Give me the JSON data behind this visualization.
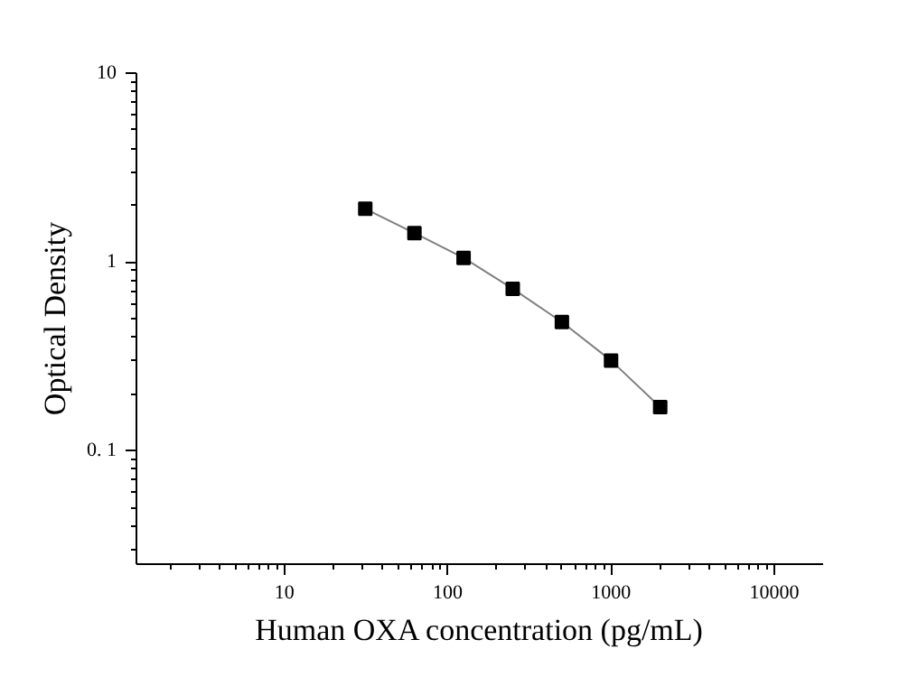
{
  "chart_data": {
    "type": "line",
    "xlabel": "Human OXA concentration (pg/mL)",
    "ylabel": "Optical Density",
    "x": [
      31.25,
      62.5,
      125,
      250,
      500,
      1000,
      2000
    ],
    "series": [
      {
        "color": "#000000",
        "values": [
          1.91,
          1.42,
          1.05,
          0.72,
          0.48,
          0.3,
          0.17
        ]
      }
    ],
    "log": "xy",
    "xlim": [
      1.24,
      19900
    ],
    "ylim": [
      0.025,
      10
    ],
    "xticks": [
      10,
      100,
      1000,
      10000
    ],
    "yticks": [
      {
        "value": 0.1,
        "label": "0. 1"
      },
      1,
      10
    ],
    "marker": "square",
    "line_style": "solid"
  }
}
